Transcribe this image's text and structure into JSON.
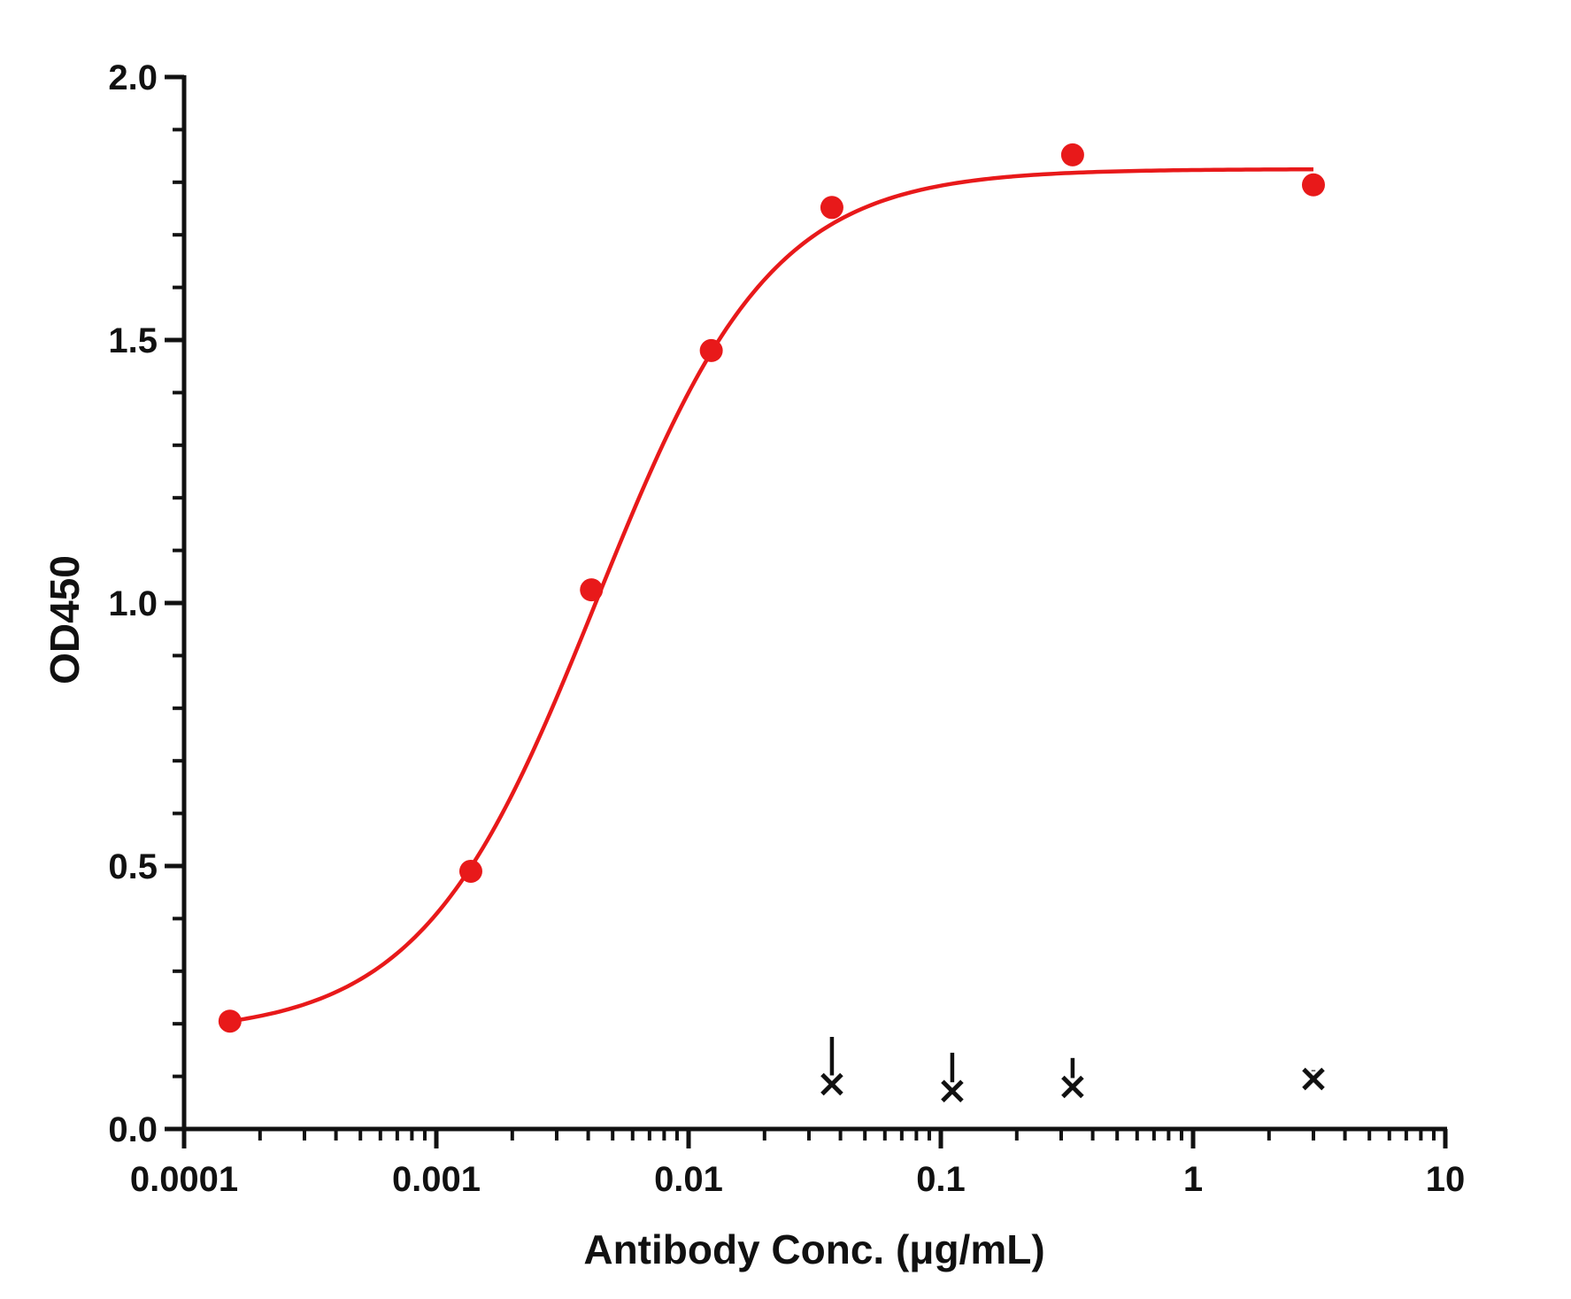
{
  "chart_data": {
    "type": "scatter",
    "title": "",
    "xlabel": "Antibody Conc. (μg/mL)",
    "ylabel": "OD450",
    "x_scale": "log",
    "xlim": [
      0.0001,
      10
    ],
    "ylim": [
      0,
      2.0
    ],
    "x_ticks": [
      {
        "value": 0.0001,
        "label": "0.0001"
      },
      {
        "value": 0.001,
        "label": "0.001"
      },
      {
        "value": 0.01,
        "label": "0.01"
      },
      {
        "value": 0.1,
        "label": "0.1"
      },
      {
        "value": 1,
        "label": "1"
      },
      {
        "value": 10,
        "label": "10"
      }
    ],
    "y_ticks": [
      {
        "value": 0.0,
        "label": "0.0"
      },
      {
        "value": 0.5,
        "label": "0.5"
      },
      {
        "value": 1.0,
        "label": "1.0"
      },
      {
        "value": 1.5,
        "label": "1.5"
      },
      {
        "value": 2.0,
        "label": "2.0"
      }
    ],
    "grid": false,
    "legend": "none",
    "series": [
      {
        "marker": "circle",
        "color": "#e8191a",
        "x": [
          0.000152,
          0.00137,
          0.00412,
          0.0123,
          0.037,
          0.333,
          3.0
        ],
        "y": [
          0.205,
          0.49,
          1.025,
          1.48,
          1.752,
          1.852,
          1.795
        ],
        "fit": {
          "model": "4PL",
          "bottom": 0.18,
          "top": 1.825,
          "ec50": 0.0043,
          "hill": 1.25,
          "color": "#e8191a"
        }
      },
      {
        "marker": "cross",
        "color": "#111111",
        "x": [
          0.037,
          0.111,
          0.333,
          3.0
        ],
        "y": [
          0.085,
          0.072,
          0.08,
          0.095
        ],
        "error_upper": [
          0.175,
          0.145,
          0.135,
          0.11
        ]
      }
    ]
  }
}
